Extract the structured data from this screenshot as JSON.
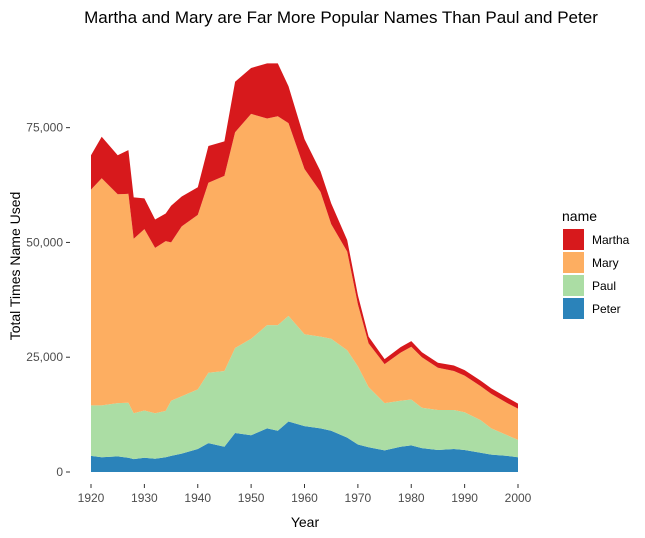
{
  "chart_data": {
    "type": "area",
    "stacked": true,
    "title": "Martha and Mary are Far More Popular Names Than Paul and Peter",
    "xlabel": "Year",
    "ylabel": "Total Times Name Used",
    "xlim": [
      1920,
      2000
    ],
    "ylim": [
      0,
      93000
    ],
    "x_ticks": [
      1920,
      1930,
      1940,
      1950,
      1960,
      1970,
      1980,
      1990,
      2000
    ],
    "y_ticks": [
      0,
      25000,
      50000,
      75000
    ],
    "y_tick_labels": [
      "0",
      "25,000",
      "50,000",
      "75,000"
    ],
    "grid": false,
    "legend": {
      "title": "name",
      "position": "right"
    },
    "x": [
      1920,
      1922,
      1925,
      1927,
      1928,
      1930,
      1932,
      1934,
      1935,
      1937,
      1940,
      1942,
      1945,
      1947,
      1950,
      1953,
      1955,
      1957,
      1960,
      1963,
      1965,
      1968,
      1970,
      1972,
      1975,
      1978,
      1980,
      1982,
      1985,
      1988,
      1990,
      1993,
      1995,
      1998,
      2000
    ],
    "series": [
      {
        "name": "Peter",
        "color": "#2b83ba",
        "values": [
          3500,
          3200,
          3400,
          3100,
          2800,
          3100,
          2900,
          3200,
          3500,
          4000,
          5000,
          6300,
          5500,
          8500,
          8000,
          9500,
          9000,
          11000,
          10000,
          9500,
          9000,
          7500,
          6000,
          5400,
          4700,
          5500,
          5800,
          5200,
          4800,
          5000,
          4800,
          4200,
          3800,
          3500,
          3200
        ]
      },
      {
        "name": "Paul",
        "color": "#abdda4",
        "values": [
          11000,
          11300,
          11600,
          12000,
          10000,
          10300,
          9900,
          10100,
          12000,
          12500,
          13000,
          15300,
          16500,
          18500,
          21000,
          22500,
          23000,
          23000,
          20000,
          20000,
          20000,
          19000,
          17000,
          13100,
          10300,
          10000,
          10000,
          8800,
          8700,
          8500,
          8200,
          7100,
          5700,
          4500,
          3800
        ]
      },
      {
        "name": "Mary",
        "color": "#fdae61",
        "values": [
          47000,
          49500,
          45500,
          45500,
          38000,
          39500,
          36000,
          37000,
          34500,
          37000,
          38000,
          41400,
          42500,
          47000,
          49000,
          45000,
          45500,
          42000,
          36000,
          31500,
          25000,
          21500,
          13500,
          9500,
          8500,
          10500,
          11500,
          11000,
          9200,
          8500,
          8000,
          7400,
          7500,
          7000,
          6800
        ]
      },
      {
        "name": "Martha",
        "color": "#d7191c",
        "values": [
          7500,
          9000,
          8500,
          9500,
          9000,
          6700,
          6200,
          6000,
          8000,
          6500,
          6000,
          8000,
          7500,
          11000,
          10000,
          12000,
          11500,
          8000,
          6500,
          4500,
          4500,
          2500,
          2000,
          1500,
          1100,
          1200,
          1200,
          1100,
          1100,
          1200,
          1200,
          1200,
          1200,
          1200,
          1100
        ]
      }
    ]
  }
}
